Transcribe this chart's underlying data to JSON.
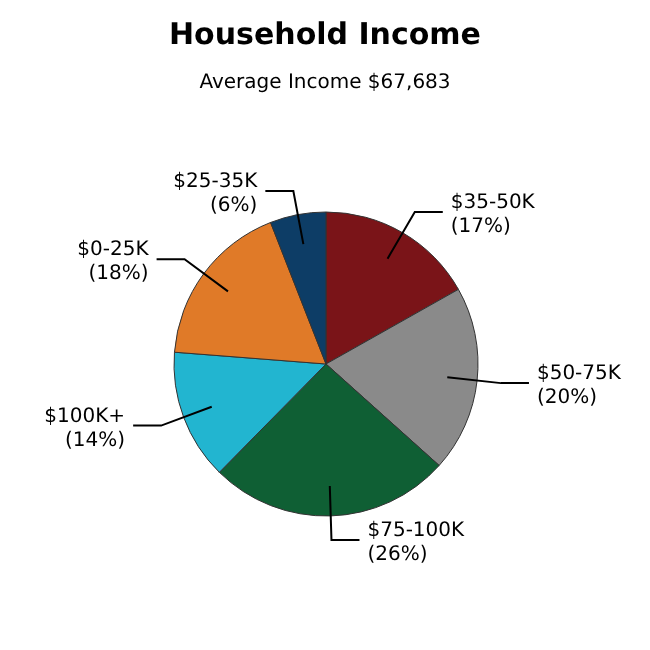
{
  "chart_data": {
    "type": "pie",
    "title": "Household Income",
    "subtitle": "Average Income  $67,683",
    "categories": [
      "$35-50K",
      "$50-75K",
      "$75-100K",
      "$100K+",
      "$0-25K",
      "$25-35K"
    ],
    "values": [
      17,
      20,
      26,
      14,
      18,
      6
    ],
    "value_labels": [
      "(17%)",
      "(20%)",
      "(26%)",
      "(14%)",
      "(18%)",
      "(6%)"
    ],
    "colors": [
      "#7a1418",
      "#8a8a8a",
      "#0f5f34",
      "#22b5d0",
      "#e07a28",
      "#0d3d66"
    ],
    "legend": false
  }
}
